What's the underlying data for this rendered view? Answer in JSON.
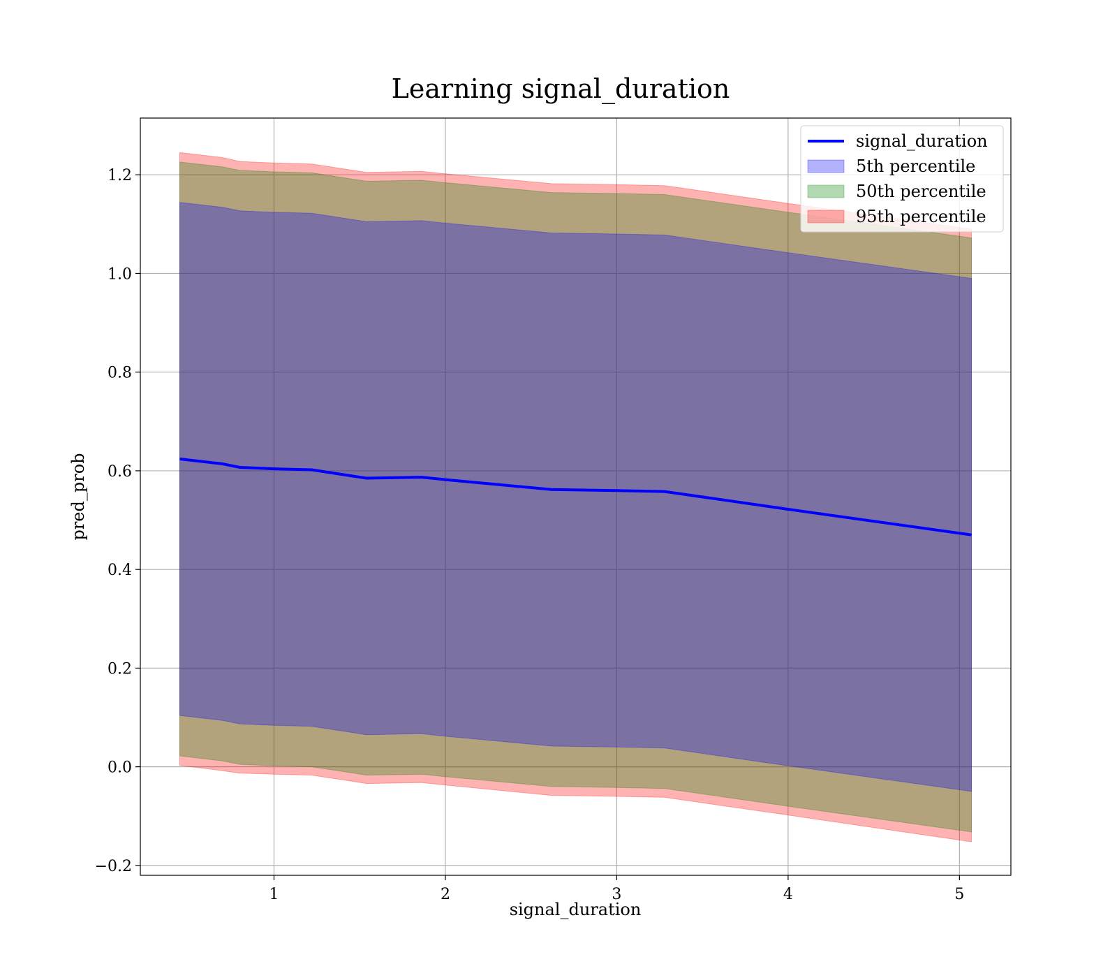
{
  "chart_data": {
    "type": "area",
    "title": "Learning signal_duration",
    "xlabel": "signal_duration",
    "ylabel": "pred_prob",
    "xlim": [
      0.22,
      5.3
    ],
    "ylim": [
      -0.22,
      1.315
    ],
    "xticks": [
      1,
      2,
      3,
      4,
      5
    ],
    "yticks": [
      -0.2,
      0.0,
      0.2,
      0.4,
      0.6,
      0.8,
      1.0,
      1.2
    ],
    "ytick_labels": [
      "−0.2",
      "0.0",
      "0.2",
      "0.4",
      "0.6",
      "0.8",
      "1.0",
      "1.2"
    ],
    "grid": true,
    "legend_position": "top-right",
    "x": [
      0.45,
      0.7,
      0.8,
      1.0,
      1.22,
      1.54,
      1.86,
      2.0,
      2.62,
      3.0,
      3.28,
      4.0,
      5.07
    ],
    "line": {
      "name": "signal_duration",
      "color": "#0000ff",
      "values": [
        0.624,
        0.614,
        0.607,
        0.604,
        0.602,
        0.585,
        0.587,
        0.582,
        0.562,
        0.56,
        0.558,
        0.522,
        0.47
      ]
    },
    "bands": [
      {
        "name": "95th percentile",
        "color": "#ff0000",
        "opacity": 0.3,
        "lower": [
          0.003,
          -0.008,
          -0.013,
          -0.015,
          -0.017,
          -0.034,
          -0.032,
          -0.037,
          -0.058,
          -0.06,
          -0.062,
          -0.098,
          -0.152
        ],
        "upper": [
          1.245,
          1.235,
          1.227,
          1.224,
          1.222,
          1.205,
          1.207,
          1.202,
          1.182,
          1.18,
          1.178,
          1.142,
          1.09
        ]
      },
      {
        "name": "50th percentile",
        "color": "#008000",
        "opacity": 0.3,
        "lower": [
          0.022,
          0.012,
          0.005,
          0.002,
          0.0,
          -0.017,
          -0.015,
          -0.02,
          -0.04,
          -0.042,
          -0.044,
          -0.08,
          -0.132
        ],
        "upper": [
          1.226,
          1.216,
          1.209,
          1.206,
          1.204,
          1.187,
          1.189,
          1.184,
          1.164,
          1.162,
          1.16,
          1.124,
          1.072
        ]
      },
      {
        "name": "5th percentile",
        "color": "#0000ff",
        "opacity": 0.3,
        "lower": [
          0.104,
          0.094,
          0.087,
          0.084,
          0.082,
          0.065,
          0.067,
          0.062,
          0.042,
          0.04,
          0.038,
          0.002,
          -0.05
        ],
        "upper": [
          1.144,
          1.134,
          1.127,
          1.124,
          1.122,
          1.105,
          1.107,
          1.102,
          1.082,
          1.08,
          1.078,
          1.042,
          0.99
        ]
      }
    ],
    "legend": [
      {
        "label": "signal_duration",
        "kind": "line",
        "color": "#0000ff"
      },
      {
        "label": "5th percentile",
        "kind": "patch",
        "color": "#0000ff"
      },
      {
        "label": "50th percentile",
        "kind": "patch",
        "color": "#008000"
      },
      {
        "label": "95th percentile",
        "kind": "patch",
        "color": "#ff0000"
      }
    ]
  }
}
